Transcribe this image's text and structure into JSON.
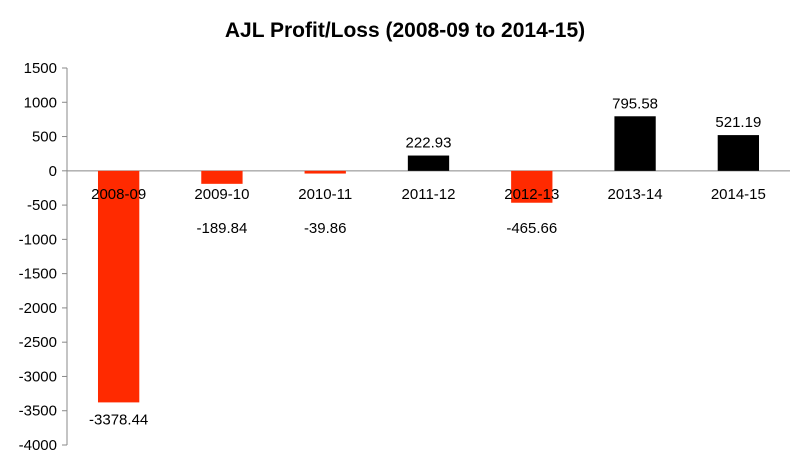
{
  "chart_data": {
    "type": "bar",
    "title": "AJL Profit/Loss (2008-09 to 2014-15)",
    "xlabel": "",
    "ylabel": "",
    "categories": [
      "2008-09",
      "2009-10",
      "2010-11",
      "2011-12",
      "2012-13",
      "2013-14",
      "2014-15"
    ],
    "values": [
      -3378.44,
      -189.84,
      -39.86,
      222.93,
      -465.66,
      795.58,
      521.19
    ],
    "data_labels": [
      "-3378.44",
      "-189.84",
      "-39.86",
      "222.93",
      "-465.66",
      "795.58",
      "521.19"
    ],
    "ylim": [
      -4000,
      1500
    ],
    "yticks": [
      1500,
      1000,
      500,
      0,
      -500,
      -1000,
      -1500,
      -2000,
      -2500,
      -3000,
      -3500,
      -4000
    ],
    "colors": {
      "negative": "#ff2a00",
      "positive": "#000000"
    },
    "grid": false,
    "legend": "none"
  }
}
